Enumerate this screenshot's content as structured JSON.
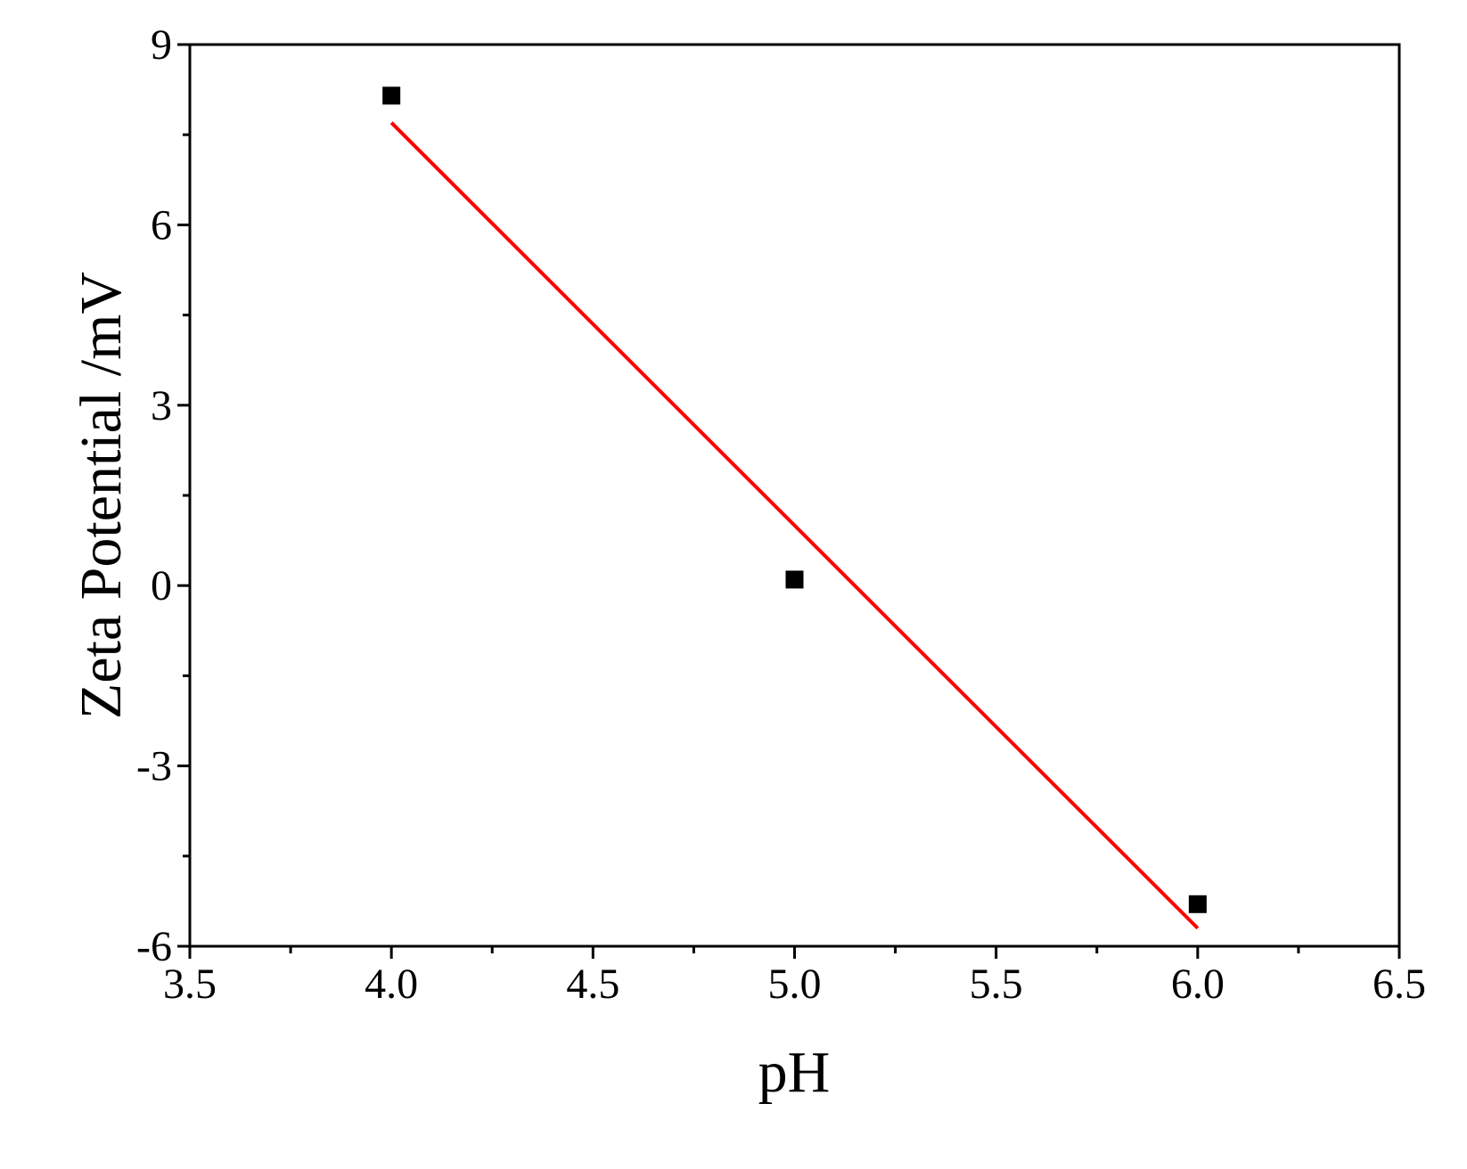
{
  "chart_data": {
    "type": "scatter",
    "x_label": "pH",
    "y_label": "Zeta Potential /mV",
    "xlim": [
      3.5,
      6.5
    ],
    "xticks": [
      3.5,
      {
        "value": 4,
        "label": "4.0"
      },
      4.5,
      {
        "value": 5,
        "label": "5.0"
      },
      5.5,
      {
        "value": 6,
        "label": "6.0"
      },
      6.5
    ],
    "ylim": [
      -6,
      9
    ],
    "yticks": [
      -6,
      -3,
      0,
      3,
      6,
      9
    ],
    "series": [
      {
        "type": "scatter",
        "color": "#000000",
        "x": [
          4,
          5,
          6
        ],
        "values": [
          8.15,
          0.1,
          -5.3
        ]
      },
      {
        "type": "line",
        "color": "#ff0000",
        "x": [
          4,
          6
        ],
        "values": [
          7.7,
          -5.7
        ]
      }
    ]
  }
}
